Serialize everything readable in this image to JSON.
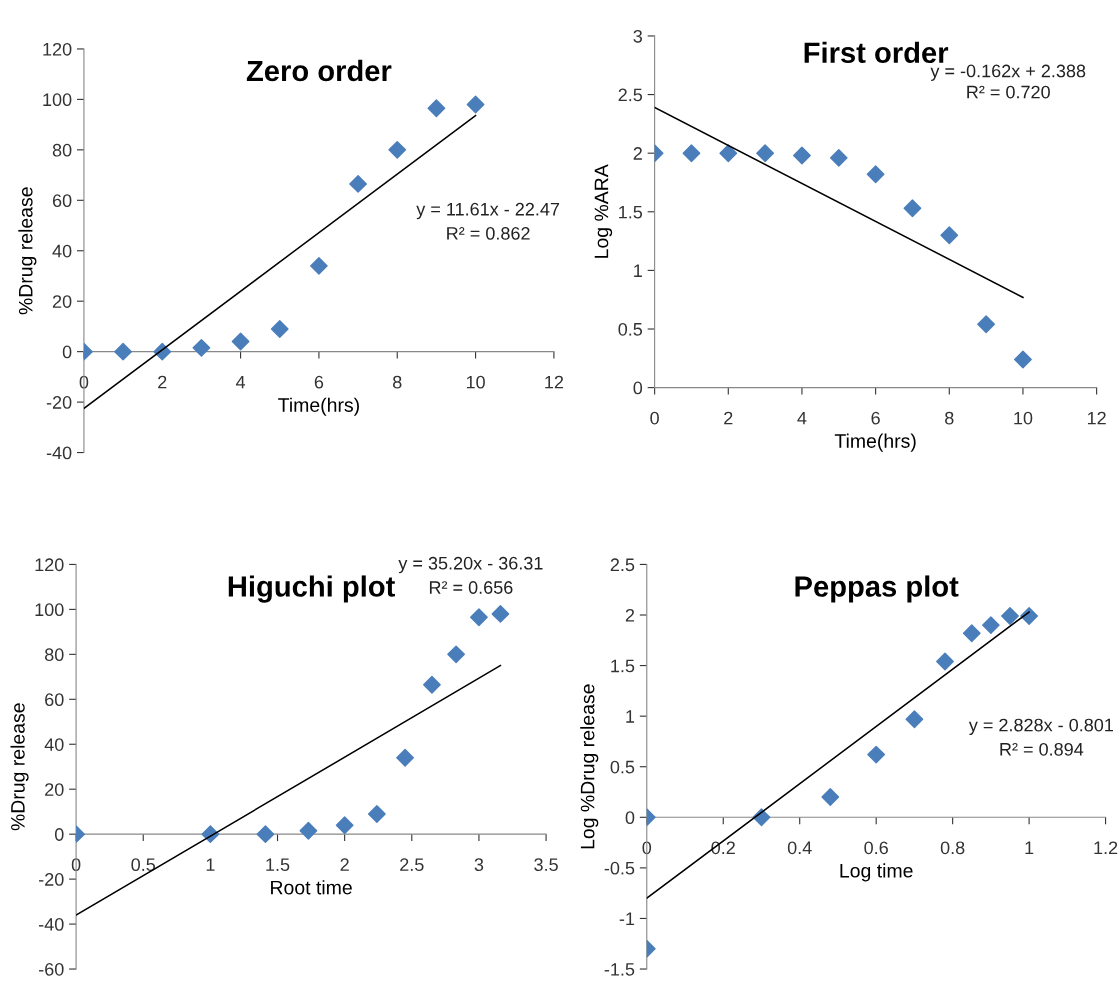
{
  "chart_data": [
    {
      "type": "scatter",
      "title": "Zero order",
      "xlabel": "Time(hrs)",
      "ylabel": "%Drug release",
      "marker": "diamond",
      "grid": false,
      "legend": false,
      "xlim": [
        0,
        12
      ],
      "xticks": [
        0,
        2,
        4,
        6,
        8,
        10,
        12
      ],
      "ylim": [
        -40,
        120
      ],
      "yticks": [
        -40,
        -20,
        0,
        20,
        40,
        60,
        80,
        100,
        120
      ],
      "series": [
        {
          "color": "#4a7ebb",
          "x": [
            0,
            1,
            2,
            3,
            4,
            5,
            6,
            7,
            8,
            9,
            10
          ],
          "values": [
            0,
            0,
            0,
            1.5,
            4,
            9,
            34,
            66.5,
            80,
            96.5,
            98
          ]
        },
        {
          "type": "line",
          "color": "#000000",
          "marker": "none",
          "x": [
            0,
            10
          ],
          "values": [
            -22.5,
            93.6
          ]
        }
      ],
      "annotations": [
        "y = 11.61x - 22.47",
        "R² = 0.862"
      ]
    },
    {
      "type": "scatter",
      "title": "First order",
      "xlabel": "Time(hrs)",
      "ylabel": "Log %ARA",
      "marker": "diamond",
      "grid": false,
      "legend": false,
      "xlim": [
        0,
        12
      ],
      "xticks": [
        0,
        2,
        4,
        6,
        8,
        10,
        12
      ],
      "ylim": [
        0,
        3
      ],
      "yticks": [
        0,
        0.5,
        1,
        1.5,
        2,
        2.5,
        3
      ],
      "series": [
        {
          "color": "#4a7ebb",
          "x": [
            0,
            1,
            2,
            3,
            4,
            5,
            6,
            7,
            8,
            9,
            10
          ],
          "values": [
            2,
            2,
            2,
            2,
            1.98,
            1.96,
            1.82,
            1.53,
            1.3,
            0.54,
            0.24
          ]
        },
        {
          "type": "line",
          "color": "#000000",
          "marker": "none",
          "x": [
            0,
            10
          ],
          "values": [
            2.39,
            0.77
          ]
        }
      ],
      "annotations": [
        "y = -0.162x + 2.388",
        "R² = 0.720"
      ]
    },
    {
      "type": "scatter",
      "title": "Higuchi plot",
      "xlabel": "Root time",
      "ylabel": "%Drug release",
      "marker": "diamond",
      "grid": false,
      "legend": false,
      "xlim": [
        0,
        3.5
      ],
      "xticks": [
        0,
        0.5,
        1,
        1.5,
        2,
        2.5,
        3,
        3.5
      ],
      "ylim": [
        -60,
        120
      ],
      "yticks": [
        -60,
        -40,
        -20,
        0,
        20,
        40,
        60,
        80,
        100,
        120
      ],
      "series": [
        {
          "color": "#4a7ebb",
          "x": [
            0,
            1,
            1.41,
            1.73,
            2,
            2.24,
            2.45,
            2.65,
            2.83,
            3,
            3.16
          ],
          "values": [
            0,
            0,
            0,
            1.5,
            4,
            9,
            34,
            66.5,
            80,
            96.5,
            98
          ]
        },
        {
          "type": "line",
          "color": "#000000",
          "marker": "none",
          "x": [
            0,
            3.16
          ],
          "values": [
            -36,
            75
          ]
        }
      ],
      "annotations": [
        "y = 35.20x - 36.31",
        "R² = 0.656"
      ]
    },
    {
      "type": "scatter",
      "title": "Peppas plot",
      "xlabel": "Log time",
      "ylabel": "Log %Drug release",
      "marker": "diamond",
      "grid": false,
      "legend": false,
      "xlim": [
        0,
        1.2
      ],
      "xticks": [
        0,
        0.2,
        0.4,
        0.6,
        0.8,
        1,
        1.2
      ],
      "ylim": [
        -1.5,
        2.5
      ],
      "yticks": [
        -1.5,
        -1,
        -0.5,
        0,
        0.5,
        1,
        1.5,
        2,
        2.5
      ],
      "series": [
        {
          "color": "#4a7ebb",
          "x": [
            0,
            0,
            0.3,
            0.48,
            0.6,
            0.7,
            0.78,
            0.85,
            0.9,
            0.95,
            1
          ],
          "values": [
            0,
            -1.3,
            0,
            0.2,
            0.62,
            0.97,
            1.54,
            1.82,
            1.9,
            1.99,
            1.99
          ]
        },
        {
          "type": "line",
          "color": "#000000",
          "marker": "none",
          "x": [
            0,
            1
          ],
          "values": [
            -0.8,
            2.03
          ]
        }
      ],
      "annotations": [
        "y = 2.828x - 0.801",
        "R² = 0.894"
      ]
    }
  ]
}
